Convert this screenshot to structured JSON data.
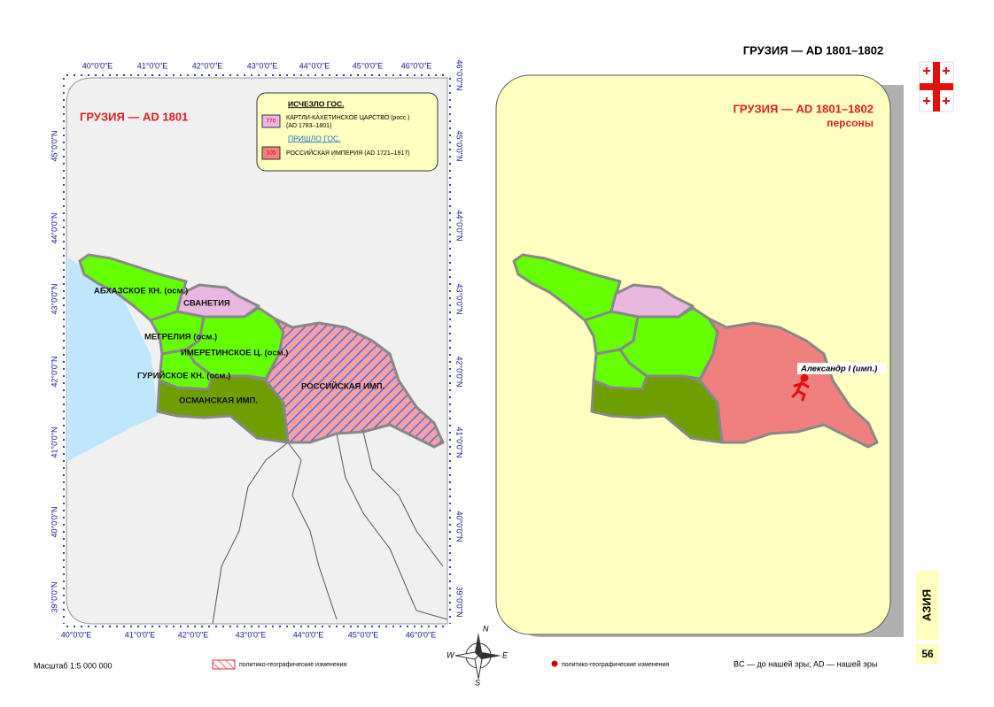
{
  "header": {
    "title": "ГРУЗИЯ — AD 1801–1802"
  },
  "left_map": {
    "title": "ГРУЗИЯ — AD 1801",
    "lon_labels_top": [
      "40°0'0\"E",
      "41°0'0\"E",
      "42°0'0\"E",
      "43°0'0\"E",
      "44°0'0\"E",
      "45°0'0\"E",
      "46°0'0\"E"
    ],
    "lon_labels_bottom": [
      "40°0'0\"E",
      "41°0'0\"E",
      "42°0'0\"E",
      "43°0'0\"E",
      "44°0'0\"E",
      "45°0'0\"E",
      "46°0'0\"E"
    ],
    "lat_labels_left": [
      "45°0'0\"N",
      "44°0'0\"N",
      "43°0'0\"N",
      "42°0'0\"N",
      "41°0'0\"N",
      "40°0'0\"N",
      "39°0'0\"N"
    ],
    "lat_labels_right": [
      "46°0'0\"N",
      "45°0'0\"N",
      "44°0'0\"N",
      "43°0'0\"N",
      "42°0'0\"N",
      "41°0'0\"N",
      "40°0'0\"N",
      "39°0'0\"N"
    ],
    "legend": {
      "vanished_heading": "ИСЧЕЗЛО ГОС.",
      "vanished_code": "770",
      "vanished_name": "КАРТЛИ-КАХЕТИНСКОЕ ЦАРСТВО (росс.)",
      "vanished_dates": "(AD 1783–1801)",
      "arrived_heading": "ПРИШЛО ГОС.",
      "arrived_code": "105",
      "arrived_name": "РОССИЙСКАЯ ИМПЕРИЯ (AD 1721–1917)"
    },
    "regions": [
      "АБХАЗСКОЕ КН. (осм.)",
      "СВАНЕТИЯ",
      "МЕГРЕЛИЯ (осм.)",
      "ИМЕРЕТИНСКОЕ Ц. (осм.)",
      "ГУРИЙСКОЕ КН. (осм.)",
      "ОСМАНСКАЯ ИМП.",
      "РОССИЙСКАЯ ИМП."
    ]
  },
  "right_map": {
    "title": "ГРУЗИЯ — AD 1801–1802",
    "subtitle": "персоны",
    "person": "Александр I (имп.)"
  },
  "compass": [
    "N",
    "W",
    "E",
    "S"
  ],
  "footer": {
    "scale": "Масштаб 1:5 000 000",
    "legend_left": "политико-географические изменения",
    "legend_right": "политико-географические изменения",
    "era_note": "BC — до нашей эры; AD — нашей эры",
    "page_number": "56",
    "section": "АЗИЯ"
  }
}
